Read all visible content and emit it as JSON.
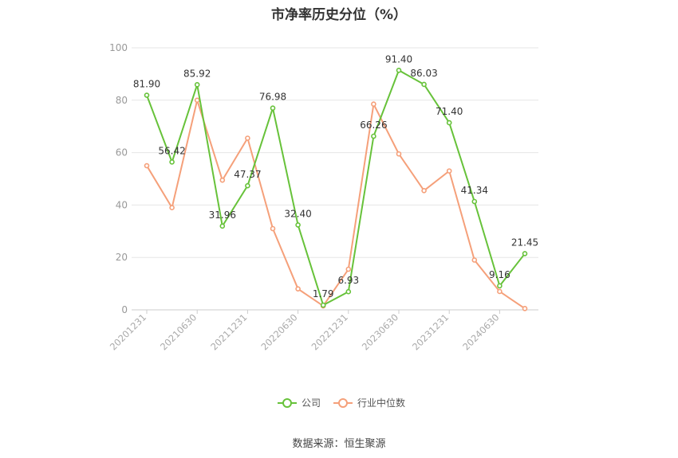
{
  "title": "市净率历史分位（%）",
  "source": "数据来源：恒生聚源",
  "colors": {
    "company": "#67c23a",
    "industry": "#f5a07a",
    "grid": "#e6e6e6",
    "axis": "#cccccc"
  },
  "chart_data": {
    "type": "line",
    "title": "市净率历史分位（%）",
    "xlabel": "",
    "ylabel": "",
    "ylim": [
      0,
      100
    ],
    "yticks": [
      0,
      20,
      40,
      60,
      80,
      100
    ],
    "grid": true,
    "legend_position": "bottom",
    "x": [
      "20201231",
      "20210331",
      "20210630",
      "20210930",
      "20211231",
      "20220331",
      "20220630",
      "20220930",
      "20221231",
      "20230331",
      "20230630",
      "20230930",
      "20231231",
      "20240331",
      "20240630",
      "20240930"
    ],
    "xtick_labels": [
      "20201231",
      "20210630",
      "20211231",
      "20220630",
      "20221231",
      "20230630",
      "20231231",
      "20240630"
    ],
    "series": [
      {
        "name": "公司",
        "color": "#67c23a",
        "labeled": true,
        "values": [
          81.9,
          56.42,
          85.92,
          31.96,
          47.37,
          76.98,
          32.4,
          1.79,
          6.93,
          66.26,
          91.4,
          86.03,
          71.4,
          41.34,
          9.16,
          21.45
        ],
        "labels": [
          "81.90",
          "56.42",
          "85.92",
          "31.96",
          "47.37",
          "76.98",
          "32.40",
          "1.79",
          "6.93",
          "66.26",
          "91.40",
          "86.03",
          "71.40",
          "41.34",
          "9.16",
          "21.45"
        ]
      },
      {
        "name": "行业中位数",
        "color": "#f5a07a",
        "labeled": false,
        "values": [
          55.0,
          39.0,
          80.0,
          49.5,
          65.5,
          31.0,
          8.0,
          1.5,
          15.5,
          78.5,
          59.5,
          45.5,
          53.0,
          19.0,
          7.0,
          0.5
        ]
      }
    ]
  }
}
